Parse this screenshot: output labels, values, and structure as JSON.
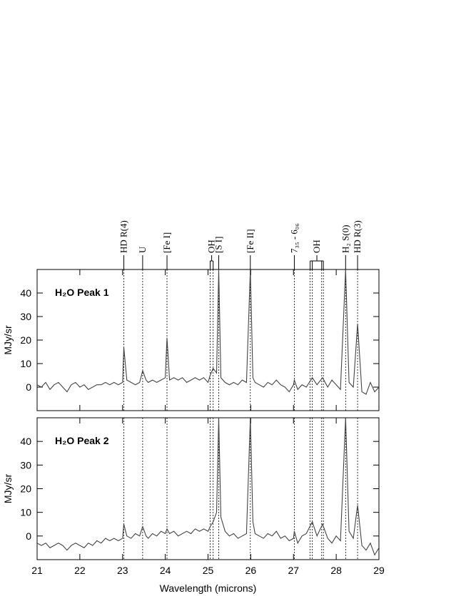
{
  "chart_data": [
    {
      "type": "line",
      "title": "H₂O Peak 1",
      "ylabel": "MJy/sr",
      "color": "#444444",
      "xlim": [
        21,
        29
      ],
      "ylim": [
        -10,
        50
      ],
      "xticks": [
        21,
        22,
        23,
        24,
        25,
        26,
        27,
        28,
        29
      ],
      "yticks": [
        0,
        10,
        20,
        30,
        40
      ],
      "x": [
        21.0,
        21.1,
        21.2,
        21.3,
        21.4,
        21.5,
        21.6,
        21.7,
        21.8,
        21.9,
        22.0,
        22.1,
        22.2,
        22.3,
        22.4,
        22.5,
        22.6,
        22.7,
        22.8,
        22.9,
        23.0,
        23.03,
        23.1,
        23.2,
        23.3,
        23.4,
        23.47,
        23.55,
        23.6,
        23.7,
        23.8,
        23.9,
        24.0,
        24.04,
        24.1,
        24.2,
        24.3,
        24.4,
        24.5,
        24.6,
        24.7,
        24.8,
        24.9,
        25.0,
        25.05,
        25.12,
        25.2,
        25.25,
        25.3,
        25.4,
        25.5,
        25.6,
        25.7,
        25.8,
        25.9,
        25.99,
        26.05,
        26.1,
        26.2,
        26.3,
        26.4,
        26.5,
        26.6,
        26.7,
        26.8,
        26.9,
        27.0,
        27.02,
        27.1,
        27.2,
        27.3,
        27.44,
        27.55,
        27.68,
        27.8,
        27.9,
        28.0,
        28.1,
        28.22,
        28.3,
        28.4,
        28.5,
        28.6,
        28.7,
        28.8,
        28.9,
        29.0
      ],
      "values": [
        1,
        0,
        2,
        -1,
        1,
        2,
        0,
        -2,
        1,
        2,
        0,
        1,
        -1,
        0,
        1,
        1,
        2,
        1,
        2,
        1,
        2,
        17,
        3,
        2,
        1,
        2,
        7,
        3,
        2,
        3,
        2,
        3,
        4,
        21,
        3,
        4,
        3,
        4,
        2,
        3,
        4,
        3,
        4,
        2,
        5,
        8,
        6,
        50,
        4,
        2,
        1,
        2,
        1,
        3,
        2,
        50,
        4,
        2,
        1,
        0,
        2,
        1,
        3,
        1,
        0,
        -2,
        1,
        3,
        -1,
        1,
        0,
        4,
        1,
        4,
        0,
        3,
        1,
        -1,
        50,
        2,
        0,
        27,
        -2,
        -3,
        2,
        -2,
        0
      ],
      "line_ids": [
        {
          "label": "HD R(4)",
          "positions": [
            23.03
          ]
        },
        {
          "label": "U",
          "positions": [
            23.47
          ]
        },
        {
          "label": "[Fe I]",
          "positions": [
            24.04
          ]
        },
        {
          "label": "OH",
          "positions": [
            25.05,
            25.12
          ]
        },
        {
          "label": "[S I]",
          "positions": [
            25.25
          ]
        },
        {
          "label": "[Fe II]",
          "positions": [
            25.99
          ]
        },
        {
          "label": "7₃₅ - 6₀₆",
          "positions": [
            27.02
          ]
        },
        {
          "label": "OH",
          "positions": [
            27.39,
            27.44,
            27.66,
            27.7
          ]
        },
        {
          "label": "H₂ S(0)",
          "positions": [
            28.22
          ]
        },
        {
          "label": "HD R(3)",
          "positions": [
            28.5
          ]
        }
      ]
    },
    {
      "type": "line",
      "title": "H₂O Peak 2",
      "ylabel": "MJy/sr",
      "xlabel": "Wavelength (microns)",
      "color": "#444444",
      "xlim": [
        21,
        29
      ],
      "ylim": [
        -10,
        50
      ],
      "xticks": [
        21,
        22,
        23,
        24,
        25,
        26,
        27,
        28,
        29
      ],
      "yticks": [
        0,
        10,
        20,
        30,
        40
      ],
      "x": [
        21.0,
        21.1,
        21.2,
        21.3,
        21.4,
        21.5,
        21.6,
        21.7,
        21.8,
        21.9,
        22.0,
        22.1,
        22.2,
        22.3,
        22.4,
        22.5,
        22.6,
        22.7,
        22.8,
        22.9,
        23.0,
        23.03,
        23.1,
        23.2,
        23.3,
        23.4,
        23.47,
        23.55,
        23.6,
        23.7,
        23.8,
        23.9,
        24.0,
        24.04,
        24.1,
        24.2,
        24.3,
        24.4,
        24.5,
        24.6,
        24.7,
        24.8,
        24.9,
        25.0,
        25.05,
        25.12,
        25.2,
        25.25,
        25.3,
        25.4,
        25.5,
        25.6,
        25.7,
        25.8,
        25.9,
        25.99,
        26.05,
        26.1,
        26.2,
        26.3,
        26.4,
        26.5,
        26.6,
        26.7,
        26.8,
        26.9,
        27.0,
        27.02,
        27.1,
        27.2,
        27.3,
        27.44,
        27.55,
        27.68,
        27.8,
        27.9,
        28.0,
        28.1,
        28.22,
        28.3,
        28.4,
        28.5,
        28.6,
        28.7,
        28.8,
        28.9,
        29.0
      ],
      "values": [
        -3,
        -4,
        -3,
        -5,
        -4,
        -3,
        -4,
        -6,
        -4,
        -3,
        -4,
        -5,
        -3,
        -4,
        -2,
        -3,
        -1,
        -2,
        -1,
        -2,
        -1,
        5,
        0,
        -1,
        1,
        0,
        4,
        0,
        -1,
        1,
        0,
        2,
        1,
        3,
        1,
        2,
        0,
        1,
        2,
        1,
        3,
        2,
        3,
        2,
        4,
        6,
        10,
        50,
        8,
        2,
        0,
        1,
        -1,
        0,
        1,
        50,
        6,
        1,
        0,
        -1,
        1,
        0,
        2,
        -1,
        0,
        -2,
        -1,
        2,
        -3,
        0,
        1,
        6,
        0,
        5,
        -1,
        -3,
        0,
        -2,
        50,
        2,
        -1,
        13,
        -4,
        -6,
        -3,
        -8,
        -5
      ]
    }
  ]
}
